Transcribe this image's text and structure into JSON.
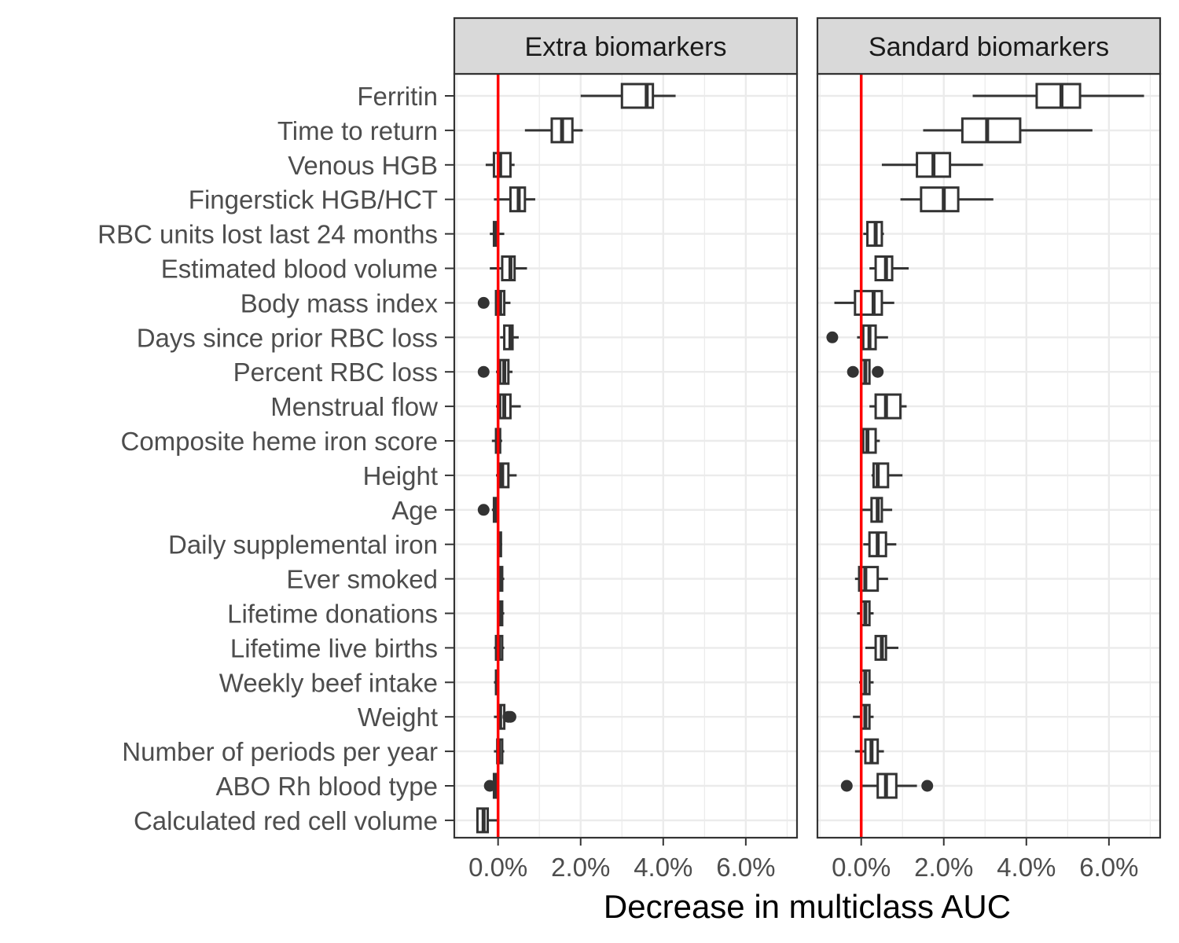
{
  "chart_data": {
    "type": "boxplot",
    "orientation": "horizontal",
    "xlabel": "Decrease in multiclass AUC",
    "ylabel": "",
    "xlim": [
      -1.06,
      7.24
    ],
    "xticks": [
      0,
      2,
      4,
      6
    ],
    "xtick_labels": [
      "0.0%",
      "2.0%",
      "4.0%",
      "6.0%"
    ],
    "reference_line": {
      "x": 0,
      "color": "#ff0000"
    },
    "grid": true,
    "colors": {
      "box": "#333333",
      "refline": "#ff0000",
      "strip_bg": "#d9d9d9",
      "grid": "#ebebeb"
    },
    "categories": [
      "Ferritin",
      "Time to return",
      "Venous HGB",
      "Fingerstick HGB/HCT",
      "RBC units lost last 24 months",
      "Estimated blood volume",
      "Body mass index",
      "Days since prior RBC loss",
      "Percent RBC loss",
      "Menstrual flow",
      "Composite heme iron score",
      "Height",
      "Age",
      "Daily supplemental iron",
      "Ever smoked",
      "Lifetime donations",
      "Lifetime live births",
      "Weekly beef intake",
      "Weight",
      "Number of periods per year",
      "ABO Rh blood type",
      "Calculated red cell volume"
    ],
    "panels": [
      {
        "title": "Extra biomarkers",
        "boxes": [
          {
            "min": 2.0,
            "q1": 3.0,
            "median": 3.6,
            "q3": 3.75,
            "max": 4.3,
            "outliers": []
          },
          {
            "min": 0.65,
            "q1": 1.3,
            "median": 1.55,
            "q3": 1.8,
            "max": 2.05,
            "outliers": []
          },
          {
            "min": -0.3,
            "q1": -0.1,
            "median": 0.05,
            "q3": 0.3,
            "max": 0.4,
            "outliers": []
          },
          {
            "min": -0.1,
            "q1": 0.3,
            "median": 0.5,
            "q3": 0.65,
            "max": 0.9,
            "outliers": []
          },
          {
            "min": -0.2,
            "q1": -0.1,
            "median": -0.05,
            "q3": 0.0,
            "max": 0.15,
            "outliers": []
          },
          {
            "min": -0.2,
            "q1": 0.1,
            "median": 0.3,
            "q3": 0.4,
            "max": 0.7,
            "outliers": []
          },
          {
            "min": -0.05,
            "q1": -0.05,
            "median": 0.05,
            "q3": 0.15,
            "max": 0.3,
            "outliers": [
              -0.35
            ]
          },
          {
            "min": 0.05,
            "q1": 0.15,
            "median": 0.3,
            "q3": 0.35,
            "max": 0.5,
            "outliers": []
          },
          {
            "min": -0.05,
            "q1": 0.05,
            "median": 0.15,
            "q3": 0.25,
            "max": 0.35,
            "outliers": [
              -0.35
            ]
          },
          {
            "min": -0.05,
            "q1": 0.05,
            "median": 0.15,
            "q3": 0.3,
            "max": 0.55,
            "outliers": []
          },
          {
            "min": -0.15,
            "q1": -0.05,
            "median": 0.0,
            "q3": 0.05,
            "max": 0.1,
            "outliers": []
          },
          {
            "min": -0.05,
            "q1": 0.05,
            "median": 0.1,
            "q3": 0.25,
            "max": 0.45,
            "outliers": []
          },
          {
            "min": -0.15,
            "q1": -0.1,
            "median": -0.05,
            "q3": -0.02,
            "max": 0.0,
            "outliers": [
              -0.35
            ]
          },
          {
            "min": -0.02,
            "q1": 0.0,
            "median": 0.03,
            "q3": 0.07,
            "max": 0.1,
            "outliers": []
          },
          {
            "min": 0.0,
            "q1": 0.03,
            "median": 0.06,
            "q3": 0.1,
            "max": 0.15,
            "outliers": []
          },
          {
            "min": 0.0,
            "q1": 0.03,
            "median": 0.06,
            "q3": 0.1,
            "max": 0.15,
            "outliers": []
          },
          {
            "min": -0.1,
            "q1": -0.05,
            "median": 0.02,
            "q3": 0.1,
            "max": 0.15,
            "outliers": []
          },
          {
            "min": -0.1,
            "q1": -0.05,
            "median": -0.02,
            "q3": 0.0,
            "max": 0.02,
            "outliers": []
          },
          {
            "min": -0.1,
            "q1": 0.0,
            "median": 0.05,
            "q3": 0.15,
            "max": 0.2,
            "outliers": [
              0.25,
              0.3
            ]
          },
          {
            "min": -0.1,
            "q1": -0.02,
            "median": 0.02,
            "q3": 0.1,
            "max": 0.15,
            "outliers": []
          },
          {
            "min": -0.15,
            "q1": -0.1,
            "median": -0.07,
            "q3": -0.05,
            "max": -0.03,
            "outliers": [
              -0.2
            ]
          },
          {
            "min": -0.5,
            "q1": -0.5,
            "median": -0.35,
            "q3": -0.25,
            "max": 0.0,
            "outliers": []
          }
        ]
      },
      {
        "title": "Sandard biomarkers",
        "boxes": [
          {
            "min": 2.7,
            "q1": 4.25,
            "median": 4.85,
            "q3": 5.3,
            "max": 6.85,
            "outliers": []
          },
          {
            "min": 1.5,
            "q1": 2.45,
            "median": 3.05,
            "q3": 3.85,
            "max": 5.6,
            "outliers": []
          },
          {
            "min": 0.5,
            "q1": 1.35,
            "median": 1.75,
            "q3": 2.15,
            "max": 2.95,
            "outliers": []
          },
          {
            "min": 0.95,
            "q1": 1.45,
            "median": 2.0,
            "q3": 2.35,
            "max": 3.2,
            "outliers": []
          },
          {
            "min": 0.05,
            "q1": 0.15,
            "median": 0.35,
            "q3": 0.5,
            "max": 0.55,
            "outliers": []
          },
          {
            "min": 0.2,
            "q1": 0.35,
            "median": 0.6,
            "q3": 0.75,
            "max": 1.15,
            "outliers": []
          },
          {
            "min": -0.65,
            "q1": -0.15,
            "median": 0.3,
            "q3": 0.5,
            "max": 0.8,
            "outliers": []
          },
          {
            "min": -0.1,
            "q1": 0.05,
            "median": 0.2,
            "q3": 0.35,
            "max": 0.65,
            "outliers": [
              -0.7
            ]
          },
          {
            "min": 0.0,
            "q1": 0.0,
            "median": 0.1,
            "q3": 0.2,
            "max": 0.2,
            "outliers": [
              -0.2,
              0.4
            ]
          },
          {
            "min": 0.2,
            "q1": 0.35,
            "median": 0.6,
            "q3": 0.95,
            "max": 1.1,
            "outliers": []
          },
          {
            "min": 0.0,
            "q1": 0.05,
            "median": 0.15,
            "q3": 0.35,
            "max": 0.45,
            "outliers": []
          },
          {
            "min": 0.25,
            "q1": 0.3,
            "median": 0.4,
            "q3": 0.65,
            "max": 1.0,
            "outliers": []
          },
          {
            "min": 0.0,
            "q1": 0.25,
            "median": 0.4,
            "q3": 0.5,
            "max": 0.75,
            "outliers": []
          },
          {
            "min": 0.05,
            "q1": 0.2,
            "median": 0.4,
            "q3": 0.6,
            "max": 0.85,
            "outliers": []
          },
          {
            "min": -0.15,
            "q1": -0.05,
            "median": 0.1,
            "q3": 0.4,
            "max": 0.65,
            "outliers": []
          },
          {
            "min": -0.1,
            "q1": 0.0,
            "median": 0.1,
            "q3": 0.2,
            "max": 0.3,
            "outliers": []
          },
          {
            "min": 0.1,
            "q1": 0.35,
            "median": 0.5,
            "q3": 0.6,
            "max": 0.9,
            "outliers": []
          },
          {
            "min": -0.05,
            "q1": 0.0,
            "median": 0.1,
            "q3": 0.2,
            "max": 0.3,
            "outliers": []
          },
          {
            "min": -0.2,
            "q1": 0.0,
            "median": 0.1,
            "q3": 0.2,
            "max": 0.3,
            "outliers": []
          },
          {
            "min": -0.15,
            "q1": 0.1,
            "median": 0.25,
            "q3": 0.4,
            "max": 0.55,
            "outliers": []
          },
          {
            "min": 0.0,
            "q1": 0.4,
            "median": 0.6,
            "q3": 0.85,
            "max": 1.35,
            "outliers": [
              -0.35,
              1.6
            ]
          }
        ]
      }
    ]
  }
}
